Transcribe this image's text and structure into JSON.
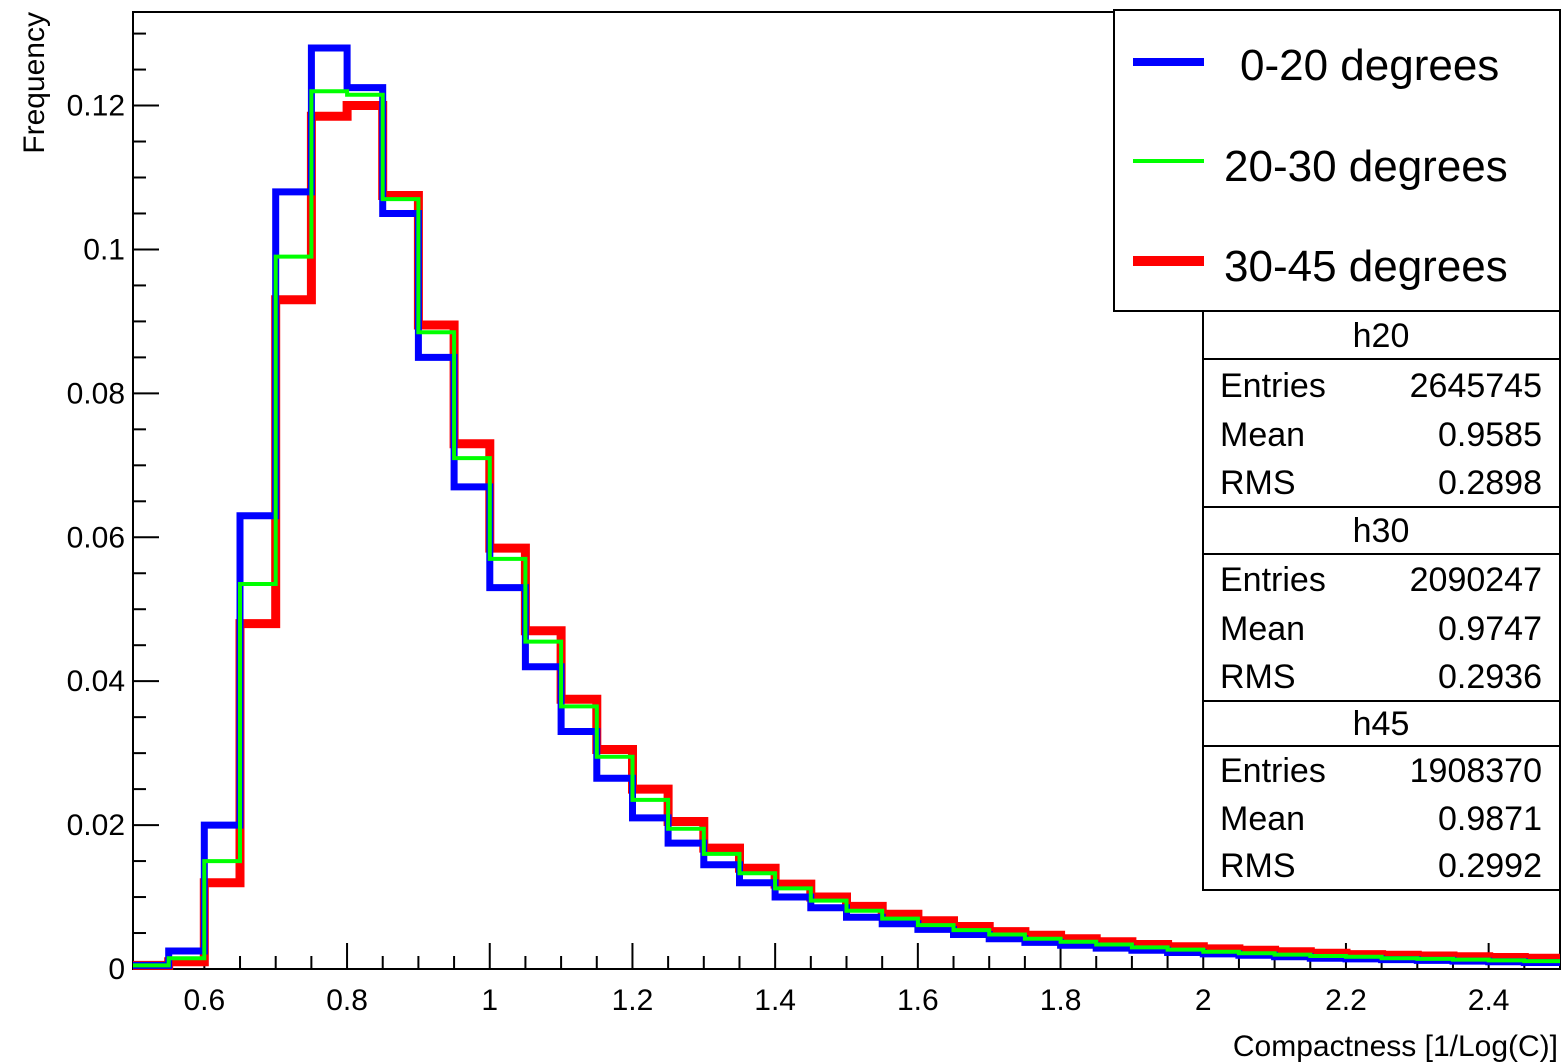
{
  "chart_data": {
    "type": "histogram",
    "xlabel": "Compactness [1/Log(C)]",
    "ylabel": "Frequency",
    "xlim": [
      0.5,
      2.5
    ],
    "ylim": [
      0,
      0.133
    ],
    "bin_width": 0.05,
    "bin_start": 0.5,
    "xticks": [
      0.6,
      0.8,
      1,
      1.2,
      1.4,
      1.6,
      1.8,
      2,
      2.2,
      2.4
    ],
    "xtick_labels": [
      "0.6",
      "0.8",
      "1",
      "1.2",
      "1.4",
      "1.6",
      "1.8",
      "2",
      "2.2",
      "2.4"
    ],
    "yticks": [
      0,
      0.02,
      0.04,
      0.06,
      0.08,
      0.1,
      0.12
    ],
    "ytick_labels": [
      "0",
      "0.02",
      "0.04",
      "0.06",
      "0.08",
      "0.1",
      "0.12"
    ],
    "legend_position": "top-right",
    "series": [
      {
        "name": "0-20 degrees",
        "color": "#0000ff",
        "values": [
          0.0005,
          0.0025,
          0.02,
          0.063,
          0.108,
          0.128,
          0.1225,
          0.105,
          0.085,
          0.067,
          0.053,
          0.042,
          0.033,
          0.0265,
          0.021,
          0.0175,
          0.0145,
          0.012,
          0.01,
          0.0085,
          0.0072,
          0.0063,
          0.0055,
          0.0048,
          0.0042,
          0.0037,
          0.0033,
          0.0029,
          0.0026,
          0.0023,
          0.0021,
          0.0019,
          0.0017,
          0.0015,
          0.0014,
          0.0013,
          0.0012,
          0.0011,
          0.001,
          0.0009
        ]
      },
      {
        "name": "20-30 degrees",
        "color": "#00ff00",
        "values": [
          0.0005,
          0.0015,
          0.015,
          0.0535,
          0.099,
          0.122,
          0.1215,
          0.107,
          0.0885,
          0.071,
          0.057,
          0.0455,
          0.0365,
          0.0295,
          0.0235,
          0.0195,
          0.016,
          0.0133,
          0.0112,
          0.0095,
          0.0081,
          0.007,
          0.0061,
          0.0054,
          0.0048,
          0.0042,
          0.0038,
          0.0034,
          0.003,
          0.0027,
          0.0024,
          0.0022,
          0.002,
          0.0018,
          0.0017,
          0.0015,
          0.0014,
          0.0013,
          0.0012,
          0.0011
        ]
      },
      {
        "name": "30-45 degrees",
        "color": "#ff0000",
        "values": [
          0.0005,
          0.001,
          0.012,
          0.048,
          0.093,
          0.1185,
          0.12,
          0.1075,
          0.0895,
          0.073,
          0.0585,
          0.047,
          0.0375,
          0.0305,
          0.025,
          0.0205,
          0.0168,
          0.014,
          0.0118,
          0.01,
          0.0087,
          0.0076,
          0.0067,
          0.0059,
          0.0052,
          0.0047,
          0.0042,
          0.0038,
          0.0034,
          0.0031,
          0.0028,
          0.0026,
          0.0024,
          0.0022,
          0.002,
          0.0019,
          0.0018,
          0.0017,
          0.0016,
          0.0015
        ]
      }
    ]
  },
  "stats": [
    {
      "name": "h20",
      "entries_label": "Entries",
      "entries": "2645745",
      "mean_label": "Mean",
      "mean": "0.9585",
      "rms_label": "RMS",
      "rms": "0.2898"
    },
    {
      "name": "h30",
      "entries_label": "Entries",
      "entries": "2090247",
      "mean_label": "Mean",
      "mean": "0.9747",
      "rms_label": "RMS",
      "rms": "0.2936"
    },
    {
      "name": "h45",
      "entries_label": "Entries",
      "entries": "1908370",
      "mean_label": "Mean",
      "mean": "0.9871",
      "rms_label": "RMS",
      "rms": "0.2992"
    }
  ]
}
